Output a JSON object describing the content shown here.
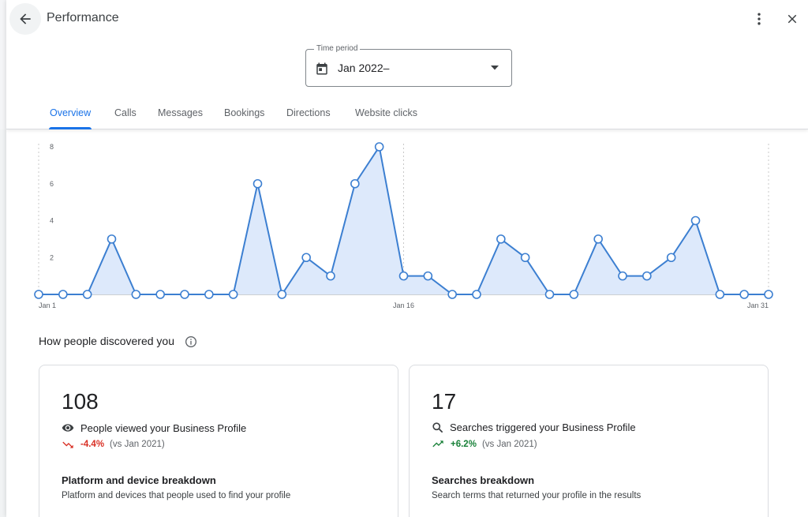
{
  "header": {
    "title": "Performance"
  },
  "time_period": {
    "label": "Time period",
    "value": "Jan 2022–"
  },
  "tabs": [
    {
      "label": "Overview"
    },
    {
      "label": "Calls"
    },
    {
      "label": "Messages"
    },
    {
      "label": "Bookings"
    },
    {
      "label": "Directions"
    },
    {
      "label": "Website clicks"
    }
  ],
  "chart_data": {
    "type": "area",
    "x": [
      1,
      2,
      3,
      4,
      5,
      6,
      7,
      8,
      9,
      10,
      11,
      12,
      13,
      14,
      15,
      16,
      17,
      18,
      19,
      20,
      21,
      22,
      23,
      24,
      25,
      26,
      27,
      28,
      29,
      30,
      31
    ],
    "values": [
      0,
      0,
      0,
      3,
      0,
      0,
      0,
      0,
      0,
      6,
      0,
      2,
      1,
      6,
      8,
      1,
      1,
      0,
      0,
      3,
      2,
      0,
      0,
      3,
      1,
      1,
      2,
      4,
      0,
      0,
      0
    ],
    "x_tick_labels": [
      "Jan 1",
      "Jan 16",
      "Jan 31"
    ],
    "y_ticks": [
      2,
      4,
      6,
      8
    ],
    "ylim": [
      0,
      8
    ],
    "line_color": "#3c7fd1",
    "fill_color": "#dde9fb"
  },
  "discovery": {
    "title": "How people discovered you",
    "cards": [
      {
        "value": "108",
        "label": "People viewed your Business Profile",
        "change": "-4.4%",
        "vs": "(vs Jan 2021)",
        "breakdown_title": "Platform and device breakdown",
        "breakdown_sub": "Platform and devices that people used to find your profile"
      },
      {
        "value": "17",
        "label": "Searches triggered your Business Profile",
        "change": "+6.2%",
        "vs": "(vs Jan 2021)",
        "breakdown_title": "Searches breakdown",
        "breakdown_sub": "Search terms that returned your profile in the results"
      }
    ]
  },
  "colors": {
    "accent": "#1a73e8",
    "negative": "#d93025",
    "positive": "#188038"
  }
}
